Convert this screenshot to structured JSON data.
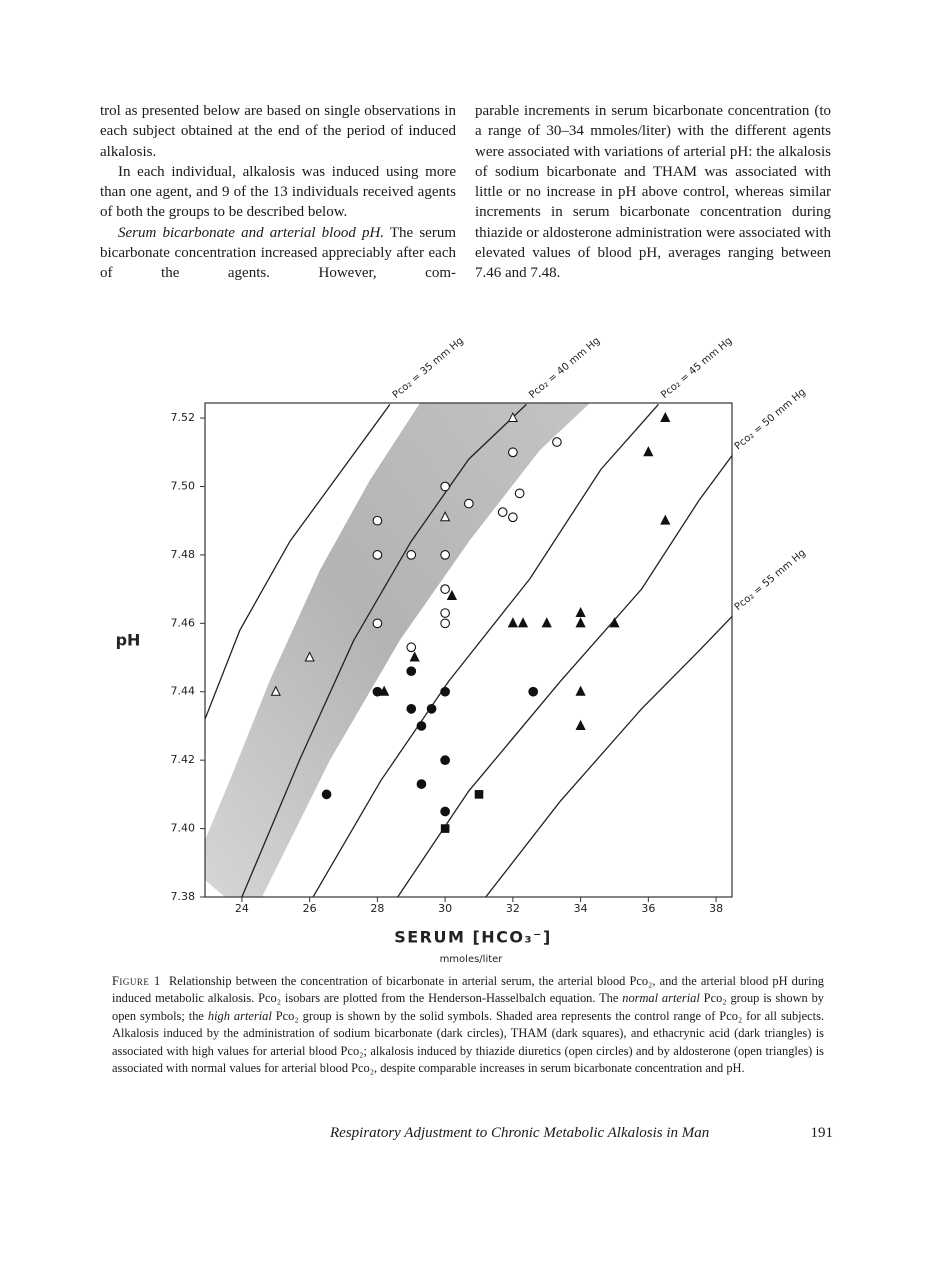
{
  "left_column": {
    "paragraphs": [
      "trol as presented below are based on single observations in each subject obtained at the end of the period of induced alkalosis.",
      "In each individual, alkalosis was induced using more than one agent, and 9 of the 13 individuals received agents of both the groups to be described below.",
      {
        "heading": "Serum bicarbonate and arterial blood pH.",
        "text": "The serum bicarbonate concentration increased appreciably after each of the agents. However, com-"
      }
    ]
  },
  "right_column": {
    "paragraphs": [
      "parable increments in serum bicarbonate concentration (to a range of 30–34 mmoles/liter) with the different agents were associated with variations of arterial pH: the alkalosis of sodium bicarbonate and THAM was associated with little or no increase in pH above control, whereas similar increments in serum bicarbonate concentration during thiazide or aldosterone administration were associated with elevated values of blood pH, averages ranging between 7.46 and 7.48."
    ]
  },
  "chart_data": {
    "type": "scatter",
    "ylabel": "pH",
    "xlabel": "SERUM [HCO₃⁻]",
    "xlabel_units": "mmoles/liter",
    "xlim": [
      22.91,
      38.47
    ],
    "ylim": [
      7.38,
      7.5244
    ],
    "xticks": [
      24,
      26,
      28,
      30,
      32,
      34,
      36,
      38
    ],
    "yticks": [
      7.38,
      {
        "value": 7.4,
        "label": "7.40"
      },
      7.42,
      7.44,
      7.46,
      7.48,
      {
        "value": 7.5,
        "label": "7.50"
      },
      7.52
    ],
    "grid": false,
    "series": [
      {
        "marker": "line",
        "label": "Pco₂ = 35 mm Hg",
        "color": "#222",
        "x": [
          22.91,
          23.94,
          25.42,
          26.6,
          28.37
        ],
        "values": [
          7.432,
          7.458,
          7.484,
          7.5,
          7.524
        ]
      },
      {
        "marker": "line",
        "label": "Pco₂ = 40 mm Hg",
        "color": "#222",
        "x": [
          24.0,
          25.7,
          27.3,
          29.0,
          30.7,
          32.4
        ],
        "values": [
          7.38,
          7.42,
          7.455,
          7.484,
          7.508,
          7.524
        ]
      },
      {
        "marker": "line",
        "label": "Pco₂ = 45 mm Hg",
        "color": "#222",
        "x": [
          26.1,
          28.1,
          30.1,
          32.5,
          34.6,
          36.3
        ],
        "values": [
          7.38,
          7.414,
          7.443,
          7.473,
          7.505,
          7.524
        ]
      },
      {
        "marker": "line",
        "label": "Pco₂ = 50 mm Hg",
        "color": "#222",
        "x": [
          28.6,
          30.7,
          33.4,
          35.8,
          37.5,
          38.47
        ],
        "values": [
          7.38,
          7.411,
          7.443,
          7.47,
          7.496,
          7.509
        ]
      },
      {
        "marker": "line",
        "label": "Pco₂ = 55 mm Hg",
        "color": "#222",
        "x": [
          31.2,
          33.4,
          35.8,
          37.5,
          38.47
        ],
        "values": [
          7.38,
          7.408,
          7.435,
          7.452,
          7.462
        ]
      },
      {
        "marker": "circle",
        "filled": false,
        "color": "#111",
        "x": [
          28,
          28,
          29,
          30,
          30.7,
          30,
          30,
          30,
          30,
          28,
          29,
          32,
          32.2,
          31.7,
          32,
          33.3
        ],
        "values": [
          7.49,
          7.48,
          7.48,
          7.5,
          7.495,
          7.48,
          7.47,
          7.463,
          7.46,
          7.46,
          7.453,
          7.51,
          7.498,
          7.4925,
          7.491,
          7.513
        ]
      },
      {
        "marker": "triangle",
        "filled": false,
        "color": "#111",
        "x": [
          26,
          25,
          30,
          32
        ],
        "values": [
          7.45,
          7.44,
          7.491,
          7.52
        ]
      },
      {
        "marker": "circle",
        "filled": true,
        "color": "#111",
        "x": [
          26.5,
          28,
          29,
          29,
          29.3,
          29.6,
          30,
          30,
          29.3,
          30,
          32.6
        ],
        "values": [
          7.41,
          7.44,
          7.435,
          7.446,
          7.43,
          7.435,
          7.44,
          7.42,
          7.413,
          7.405,
          7.44
        ]
      },
      {
        "marker": "square",
        "filled": true,
        "color": "#111",
        "x": [
          31,
          30
        ],
        "values": [
          7.41,
          7.4
        ]
      },
      {
        "marker": "triangle",
        "filled": true,
        "color": "#111",
        "x": [
          36.5,
          36,
          36.5,
          30.2,
          29.1,
          28.2,
          32,
          32.3,
          33,
          34,
          34,
          35,
          34,
          34
        ],
        "values": [
          7.52,
          7.51,
          7.49,
          7.468,
          7.45,
          7.44,
          7.46,
          7.46,
          7.46,
          7.463,
          7.46,
          7.46,
          7.44,
          7.43
        ]
      }
    ]
  },
  "caption": {
    "label": "Figure 1",
    "text_1": "Relationship between the concentration of bicarbonate in arterial serum, the arterial blood Pco₂, and the arterial blood pH during induced metabolic alkalosis. Pco₂ isobars are plotted from the Henderson-Hasselbalch equation. The",
    "italic_1": "normal arterial",
    "text_2": "Pco₂ group is shown by open symbols; the",
    "italic_2": "high arterial",
    "text_3": "Pco₂ group is shown by the solid symbols. Shaded area represents the control range of Pco₂ for all subjects. Alkalosis induced by the administration of sodium bicarbonate (dark circles), THAM (dark squares), and ethacrynic acid (dark triangles) is associated with high values for arterial blood Pco₂; alkalosis induced by thiazide diuretics (open circles) and by aldosterone (open triangles) is associated with normal values for arterial blood Pco₂, despite comparable increases in serum bicarbonate concentration and pH."
  },
  "footer": {
    "running_title": "Respiratory Adjustment to Chronic Metabolic Alkalosis in Man",
    "page_number": "191"
  }
}
